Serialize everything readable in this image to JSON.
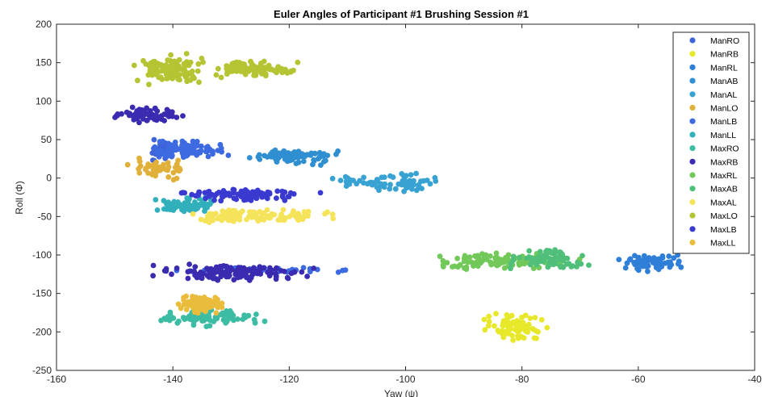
{
  "chart_data": {
    "type": "scatter",
    "title": "Euler Angles of Participant #1 Brushing Session #1",
    "xlabel": "Yaw (ψ)",
    "ylabel": "Roll (Φ)",
    "xlim": [
      -160,
      -40
    ],
    "ylim": [
      -250,
      200
    ],
    "xticks": [
      "-160",
      "-140",
      "-120",
      "-100",
      "-80",
      "-60",
      "-40"
    ],
    "yticks": [
      "200",
      "150",
      "100",
      "50",
      "0",
      "-50",
      "-100",
      "-150",
      "-200",
      "-250"
    ],
    "legend_position": "top-right",
    "grid": false,
    "series": [
      {
        "name": "ManRO",
        "color": "#3f63d8",
        "clusters": [
          {
            "xmin": -146,
            "xmax": -138,
            "ymin": 15,
            "ymax": 55,
            "n": 40
          }
        ]
      },
      {
        "name": "ManRB",
        "color": "#e8e82a",
        "clusters": [
          {
            "xmin": -88,
            "xmax": -75,
            "ymin": -215,
            "ymax": -172,
            "n": 80
          }
        ]
      },
      {
        "name": "ManRL",
        "color": "#2f7ed8",
        "clusters": [
          {
            "xmin": -65,
            "xmax": -51,
            "ymin": -122,
            "ymax": -95,
            "n": 70
          }
        ]
      },
      {
        "name": "ManAB",
        "color": "#2f8fd0",
        "clusters": [
          {
            "xmin": -128,
            "xmax": -110,
            "ymin": 15,
            "ymax": 42,
            "n": 90
          }
        ]
      },
      {
        "name": "ManAL",
        "color": "#38a2d2",
        "clusters": [
          {
            "xmin": -115,
            "xmax": -90,
            "ymin": -22,
            "ymax": 10,
            "n": 70
          }
        ]
      },
      {
        "name": "ManLO",
        "color": "#e0b03a",
        "clusters": [
          {
            "xmin": -149,
            "xmax": -136,
            "ymin": -5,
            "ymax": 28,
            "n": 50
          }
        ]
      },
      {
        "name": "ManLB",
        "color": "#3d6ae0",
        "clusters": [
          {
            "xmin": -147,
            "xmax": -129,
            "ymin": 20,
            "ymax": 52,
            "n": 90
          },
          {
            "xmin": -147,
            "xmax": -102,
            "ymin": -125,
            "ymax": -114,
            "n": 35
          }
        ]
      },
      {
        "name": "ManLL",
        "color": "#31b0bb",
        "clusters": [
          {
            "xmin": -144,
            "xmax": -131,
            "ymin": -50,
            "ymax": -22,
            "n": 70
          }
        ]
      },
      {
        "name": "MaxRO",
        "color": "#3cbca2",
        "clusters": [
          {
            "xmin": -145,
            "xmax": -122,
            "ymin": -195,
            "ymax": -168,
            "n": 80
          }
        ]
      },
      {
        "name": "MaxRB",
        "color": "#3a2bb0",
        "clusters": [
          {
            "xmin": -152,
            "xmax": -137,
            "ymin": 70,
            "ymax": 97,
            "n": 70
          },
          {
            "xmin": -146,
            "xmax": -113,
            "ymin": -138,
            "ymax": -108,
            "n": 130
          }
        ]
      },
      {
        "name": "MaxRL",
        "color": "#72c95a",
        "clusters": [
          {
            "xmin": -99,
            "xmax": -67,
            "ymin": -122,
            "ymax": -95,
            "n": 120
          }
        ]
      },
      {
        "name": "MaxAB",
        "color": "#4fbf7a",
        "clusters": [
          {
            "xmin": -84,
            "xmax": -66,
            "ymin": -122,
            "ymax": -90,
            "n": 80
          }
        ]
      },
      {
        "name": "MaxAL",
        "color": "#f5e35a",
        "clusters": [
          {
            "xmin": -142,
            "xmax": -110,
            "ymin": -60,
            "ymax": -36,
            "n": 110
          }
        ]
      },
      {
        "name": "MaxLO",
        "color": "#b4c432",
        "clusters": [
          {
            "xmin": -148,
            "xmax": -133,
            "ymin": 115,
            "ymax": 165,
            "n": 110
          },
          {
            "xmin": -135,
            "xmax": -117,
            "ymin": 128,
            "ymax": 155,
            "n": 90
          }
        ]
      },
      {
        "name": "MaxLB",
        "color": "#3a3ad0",
        "clusters": [
          {
            "xmin": -142,
            "xmax": -112,
            "ymin": -32,
            "ymax": -12,
            "n": 90
          }
        ]
      },
      {
        "name": "MaxLL",
        "color": "#eabc3c",
        "clusters": [
          {
            "xmin": -140,
            "xmax": -130,
            "ymin": -180,
            "ymax": -148,
            "n": 80
          }
        ]
      }
    ]
  }
}
